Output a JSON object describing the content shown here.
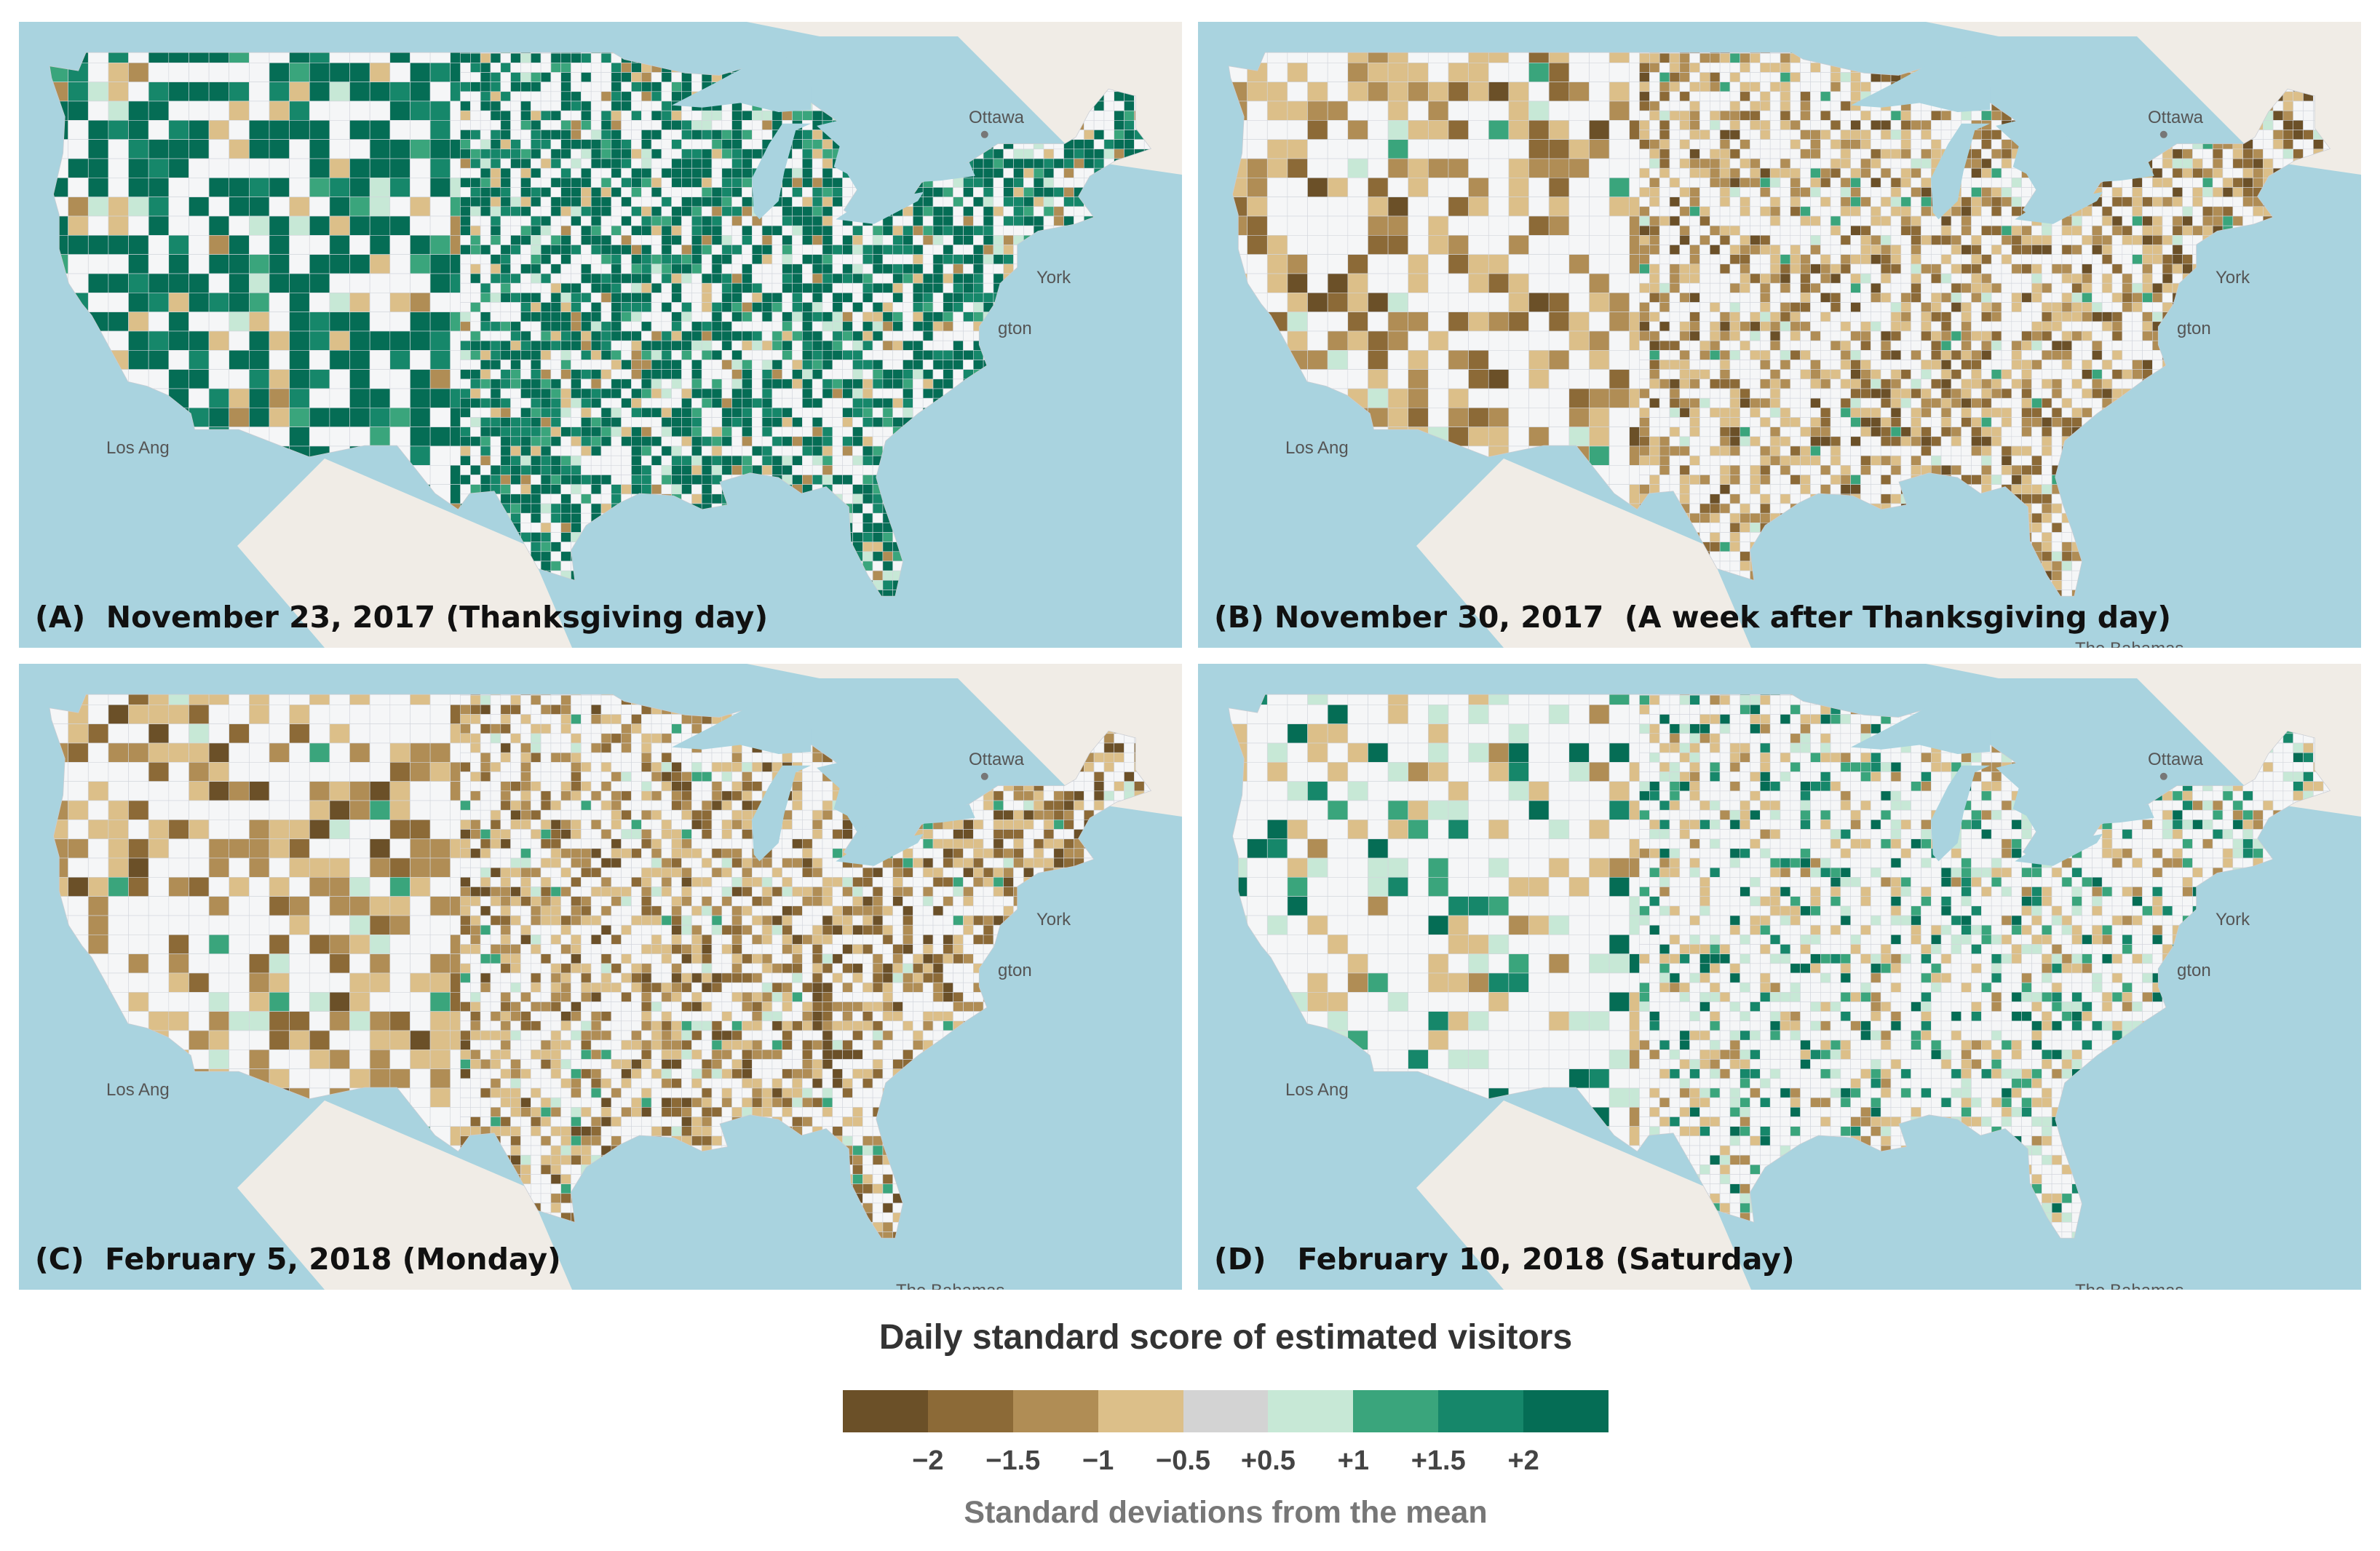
{
  "panels": [
    {
      "caption": "(A)  November 23, 2017 (Thanksgiving day)",
      "pattern": "high",
      "cities": [
        "Ottawa",
        "York",
        "gton",
        "Los Ang"
      ]
    },
    {
      "caption": "(B) November 30, 2017  (A week after Thanksgiving day)",
      "pattern": "low",
      "cities": [
        "Ottawa",
        "York",
        "gton",
        "Los Ang",
        "The Bahamas"
      ]
    },
    {
      "caption": "(C)  February 5, 2018 (Monday)",
      "pattern": "low",
      "cities": [
        "Ottawa",
        "York",
        "gton",
        "Los Ang",
        "The Bahamas"
      ]
    },
    {
      "caption": "(D)   February 10, 2018 (Saturday)",
      "pattern": "mixed",
      "cities": [
        "Ottawa",
        "York",
        "gton",
        "Los Ang",
        "The Bahamas"
      ]
    }
  ],
  "legend": {
    "title": "Daily standard score of estimated visitors",
    "subtitle": "Standard deviations from the mean",
    "colors": [
      "#6b5028",
      "#8c6a37",
      "#b08d55",
      "#dcbf89",
      "#d3d3d3",
      "#c7e8d6",
      "#3aa57c",
      "#16876a",
      "#056d55"
    ],
    "ticks": [
      "−2",
      "−1.5",
      "−1",
      "−0.5",
      "+0.5",
      "+1",
      "+1.5",
      "+2"
    ]
  },
  "colors": {
    "water": "#a9d3df",
    "land": "#f0ece6",
    "county_default": "#f5f6f7",
    "county_border": "#d2d6dc"
  }
}
